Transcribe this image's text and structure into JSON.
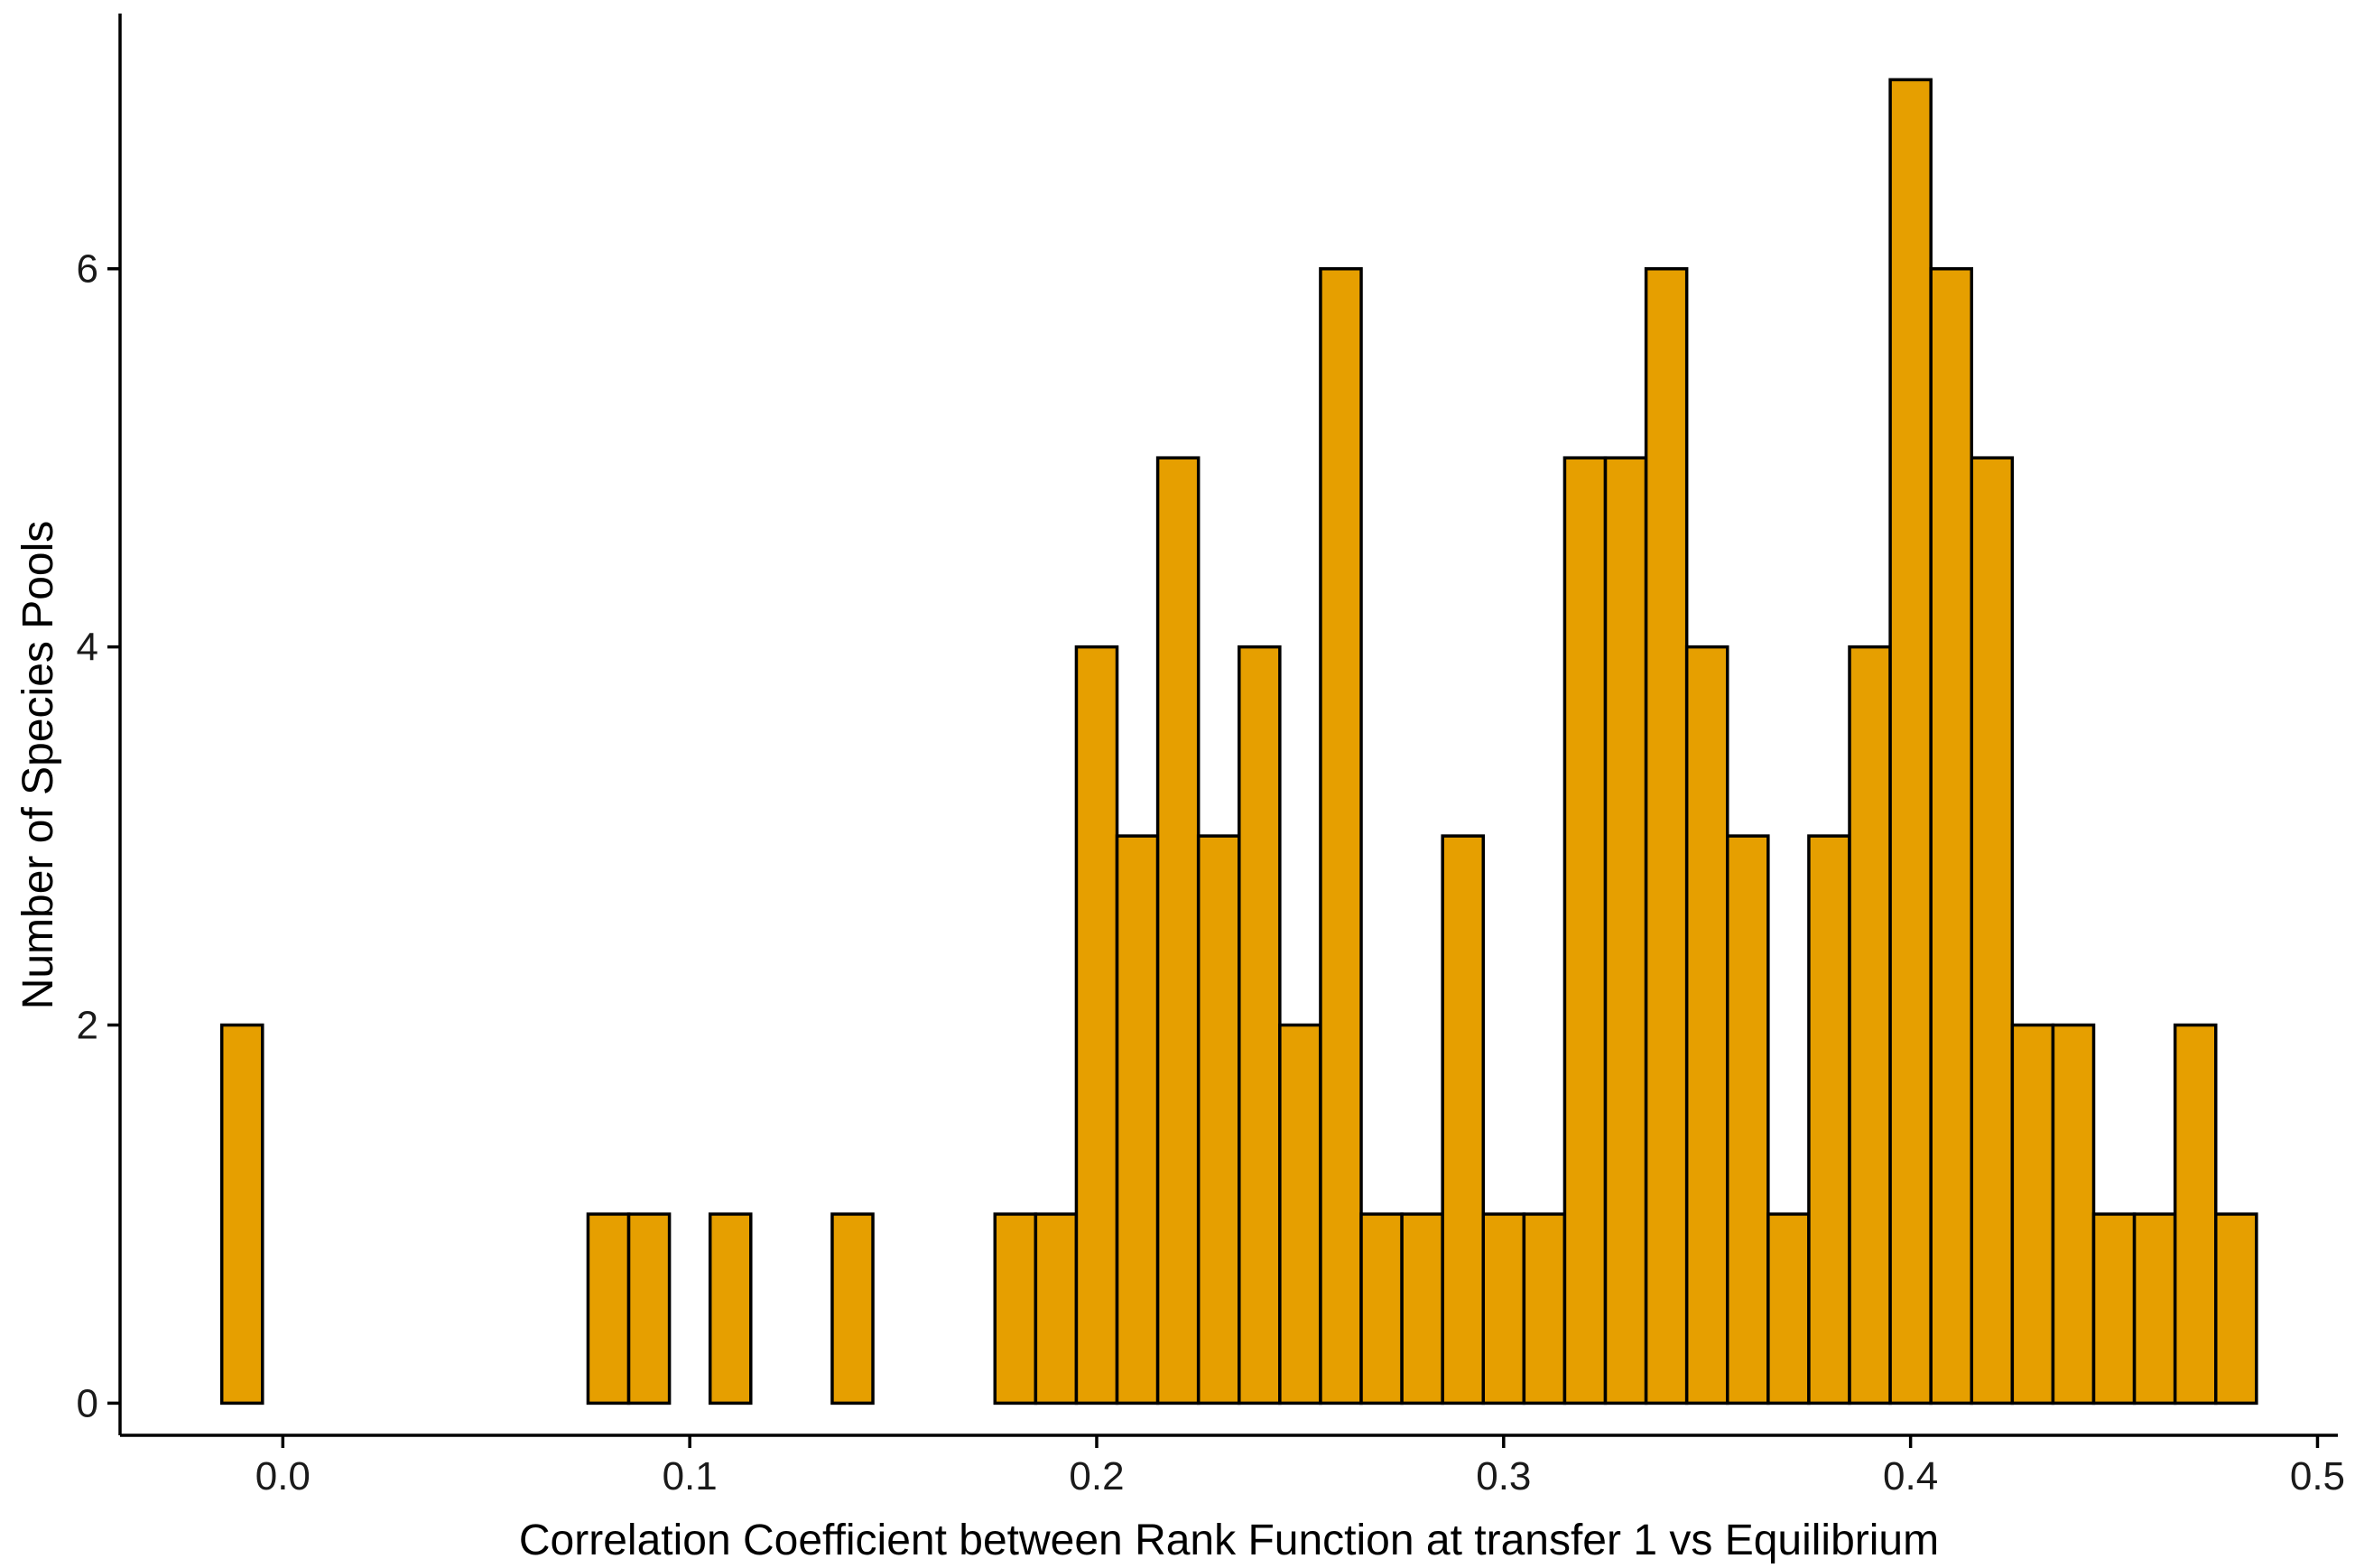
{
  "chart_data": {
    "type": "bar",
    "subtype": "histogram",
    "title": "",
    "xlabel": "Correlation Coefficient between Rank Function at transfer 1 vs Equilibrium",
    "ylabel": "Number of Species Pools",
    "xlim": [
      -0.04,
      0.505
    ],
    "ylim": [
      -0.17,
      7.35
    ],
    "bin_width": 0.01,
    "x_ticks": [
      {
        "value": 0.0,
        "label": "0.0"
      },
      {
        "value": 0.1,
        "label": "0.1"
      },
      {
        "value": 0.2,
        "label": "0.2"
      },
      {
        "value": 0.3,
        "label": "0.3"
      },
      {
        "value": 0.4,
        "label": "0.4"
      },
      {
        "value": 0.5,
        "label": "0.5"
      }
    ],
    "y_ticks": [
      {
        "value": 0,
        "label": "0"
      },
      {
        "value": 2,
        "label": "2"
      },
      {
        "value": 4,
        "label": "4"
      },
      {
        "value": 6,
        "label": "6"
      }
    ],
    "bin_centers": [
      -0.01,
      0.0,
      0.01,
      0.02,
      0.03,
      0.04,
      0.05,
      0.06,
      0.07,
      0.08,
      0.09,
      0.1,
      0.11,
      0.12,
      0.13,
      0.14,
      0.15,
      0.16,
      0.17,
      0.18,
      0.19,
      0.2,
      0.21,
      0.22,
      0.23,
      0.24,
      0.25,
      0.26,
      0.27,
      0.28,
      0.29,
      0.3,
      0.31,
      0.32,
      0.33,
      0.34,
      0.35,
      0.36,
      0.37,
      0.38,
      0.39,
      0.4,
      0.41,
      0.42,
      0.43,
      0.44,
      0.45,
      0.46,
      0.47,
      0.48
    ],
    "values": [
      2,
      0,
      0,
      0,
      0,
      0,
      0,
      0,
      0,
      1,
      1,
      0,
      1,
      0,
      0,
      1,
      0,
      0,
      0,
      1,
      1,
      4,
      3,
      5,
      3,
      4,
      2,
      6,
      1,
      1,
      3,
      1,
      1,
      5,
      5,
      6,
      4,
      3,
      1,
      3,
      4,
      7,
      6,
      5,
      2,
      2,
      1,
      1,
      2,
      1
    ],
    "bar_fill": "#E69F00",
    "bar_stroke": "#000000",
    "grid": false,
    "legend": "none"
  }
}
